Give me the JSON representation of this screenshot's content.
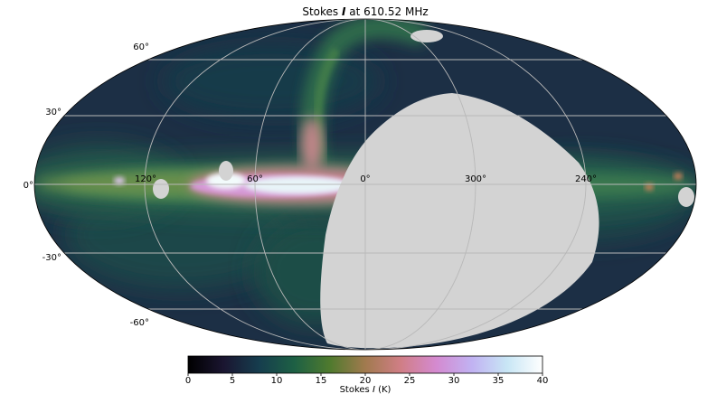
{
  "map": {
    "title_prefix": "Stokes ",
    "title_symbol": "I",
    "title_suffix": " at 610.52 MHz",
    "projection": "mollweide",
    "graticule": true,
    "lon_labels": [
      "120°",
      "60°",
      "0°",
      "300°",
      "240°"
    ],
    "lat_labels": [
      "60°",
      "30°",
      "0°",
      "-30°",
      "-60°"
    ],
    "colors": {
      "masked": "#d3d3d3",
      "graticule": "#b8b8b8",
      "background_sky": "#1b3146",
      "galactic_plane": "#5fa26b",
      "hot_core": "#f4fbfb"
    }
  },
  "colorbar": {
    "label_prefix": "Stokes ",
    "label_symbol": "I",
    "label_suffix": " (K)",
    "min": 0,
    "max": 40,
    "ticks": [
      "0",
      "5",
      "10",
      "15",
      "20",
      "25",
      "30",
      "35",
      "40"
    ],
    "colormap": "cubehelix-like",
    "stops": [
      "#000000",
      "#1a1530",
      "#163d4e",
      "#1d6044",
      "#4f7a2e",
      "#a17a4e",
      "#d07e86",
      "#d48ad0",
      "#c1b2f2",
      "#c8e6f5",
      "#ffffff"
    ]
  }
}
